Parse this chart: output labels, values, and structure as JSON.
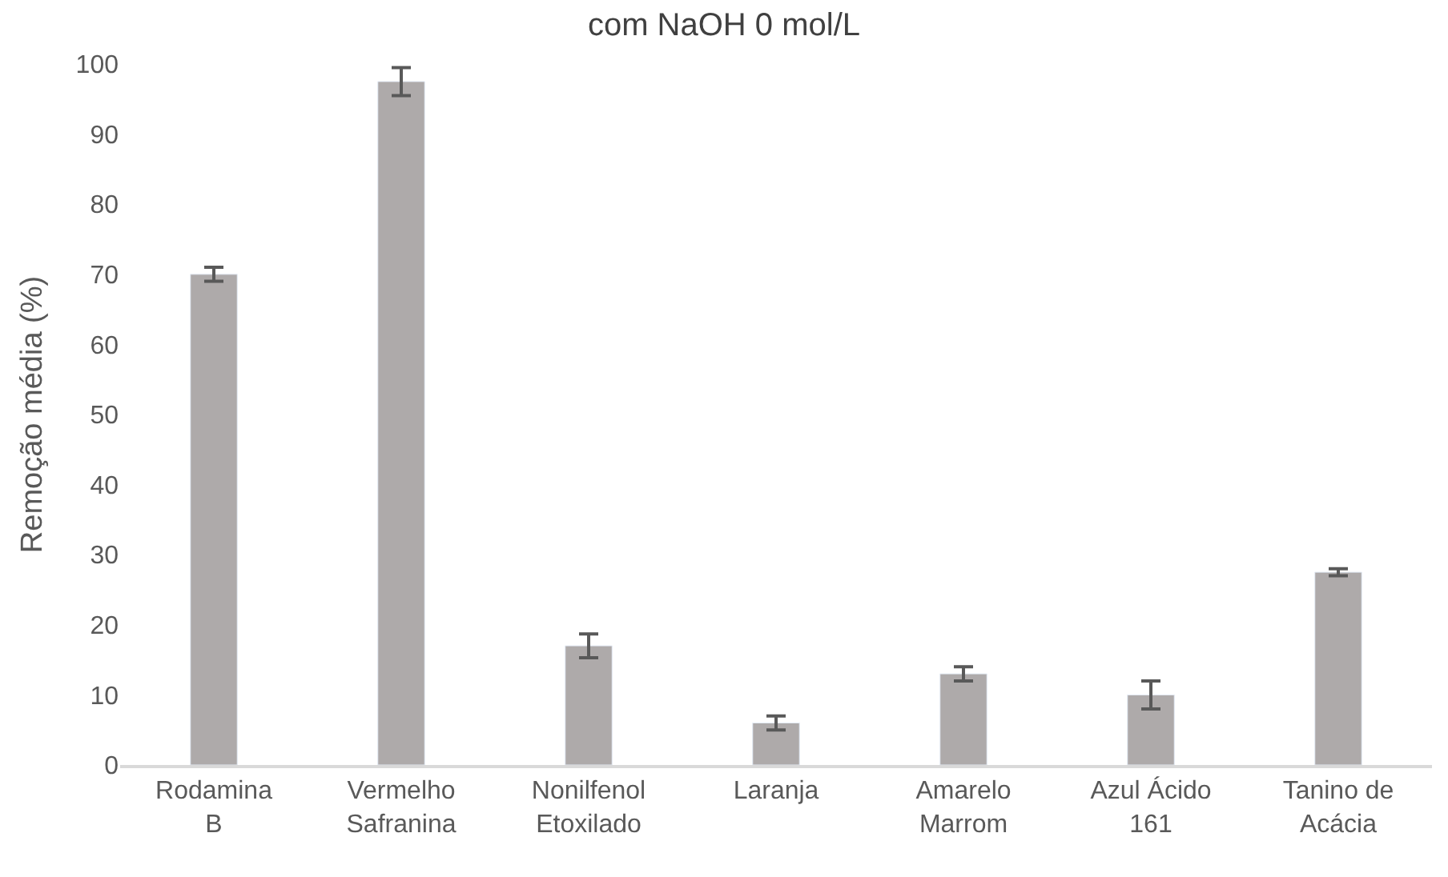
{
  "chart_data": {
    "type": "bar",
    "title": "com NaOH 0 mol/L",
    "ylabel": "Remoção média (%)",
    "categories": [
      "Rodamina B",
      "Vermelho Safranina",
      "Nonilfenol Etoxilado",
      "Laranja",
      "Amarelo Marrom",
      "Azul Ácido 161",
      "Tanino de Acácia"
    ],
    "values": [
      70,
      97.5,
      17,
      6,
      13,
      10,
      27.5
    ],
    "errors": [
      1,
      2,
      1.7,
      1,
      1,
      2,
      0.5
    ],
    "color": "#aeaaaa",
    "ylim": [
      0,
      100
    ],
    "yticks": [
      0,
      10,
      20,
      30,
      40,
      50,
      60,
      70,
      80,
      90,
      100
    ],
    "grid": false,
    "legend": false
  }
}
